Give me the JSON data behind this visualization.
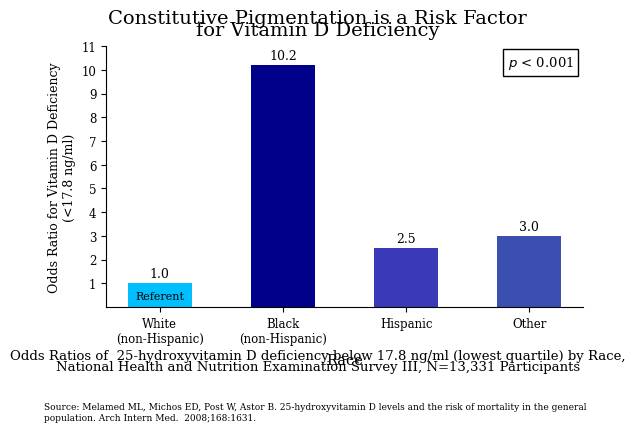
{
  "title_line1": "Constitutive Pigmentation is a Risk Factor",
  "title_line2": "for Vitamin D Deficiency",
  "categories": [
    "White\n(non-Hispanic)",
    "Black\n(non-Hispanic)",
    "Hispanic",
    "Other"
  ],
  "values": [
    1.0,
    10.2,
    2.5,
    3.0
  ],
  "bar_colors": [
    "#00BFFF",
    "#00008B",
    "#3A3AB8",
    "#3A4FB0"
  ],
  "ylabel_line1": "Odds Ratio for Vitamin D Deficiency",
  "ylabel_line2": "(<17.8 ng/ml)",
  "xlabel": "Race",
  "ylim": [
    0,
    11
  ],
  "yticks": [
    1,
    2,
    3,
    4,
    5,
    6,
    7,
    8,
    9,
    10,
    11
  ],
  "referent_label": "Referent",
  "pvalue_text": "$p$ < 0.001",
  "caption_line1": "Odds Ratios of  25-hydroxyvitamin D deficiency below 17.8 ng/ml (lowest quartile) by Race,",
  "caption_line2": "National Health and Nutrition Examination Survey III, N=13,331 Participants",
  "source_text": "Source: Melamed ML, Michos ED, Post W, Astor B. 25-hydroxyvitamin D levels and the risk of mortality in the general\npopulation. Arch Intern Med.  2008;168:1631.",
  "title_fontsize": 14,
  "axis_label_fontsize": 9,
  "tick_fontsize": 8.5,
  "bar_label_fontsize": 9,
  "caption_fontsize": 9.5,
  "source_fontsize": 6.5,
  "background_color": "#FFFFFF"
}
